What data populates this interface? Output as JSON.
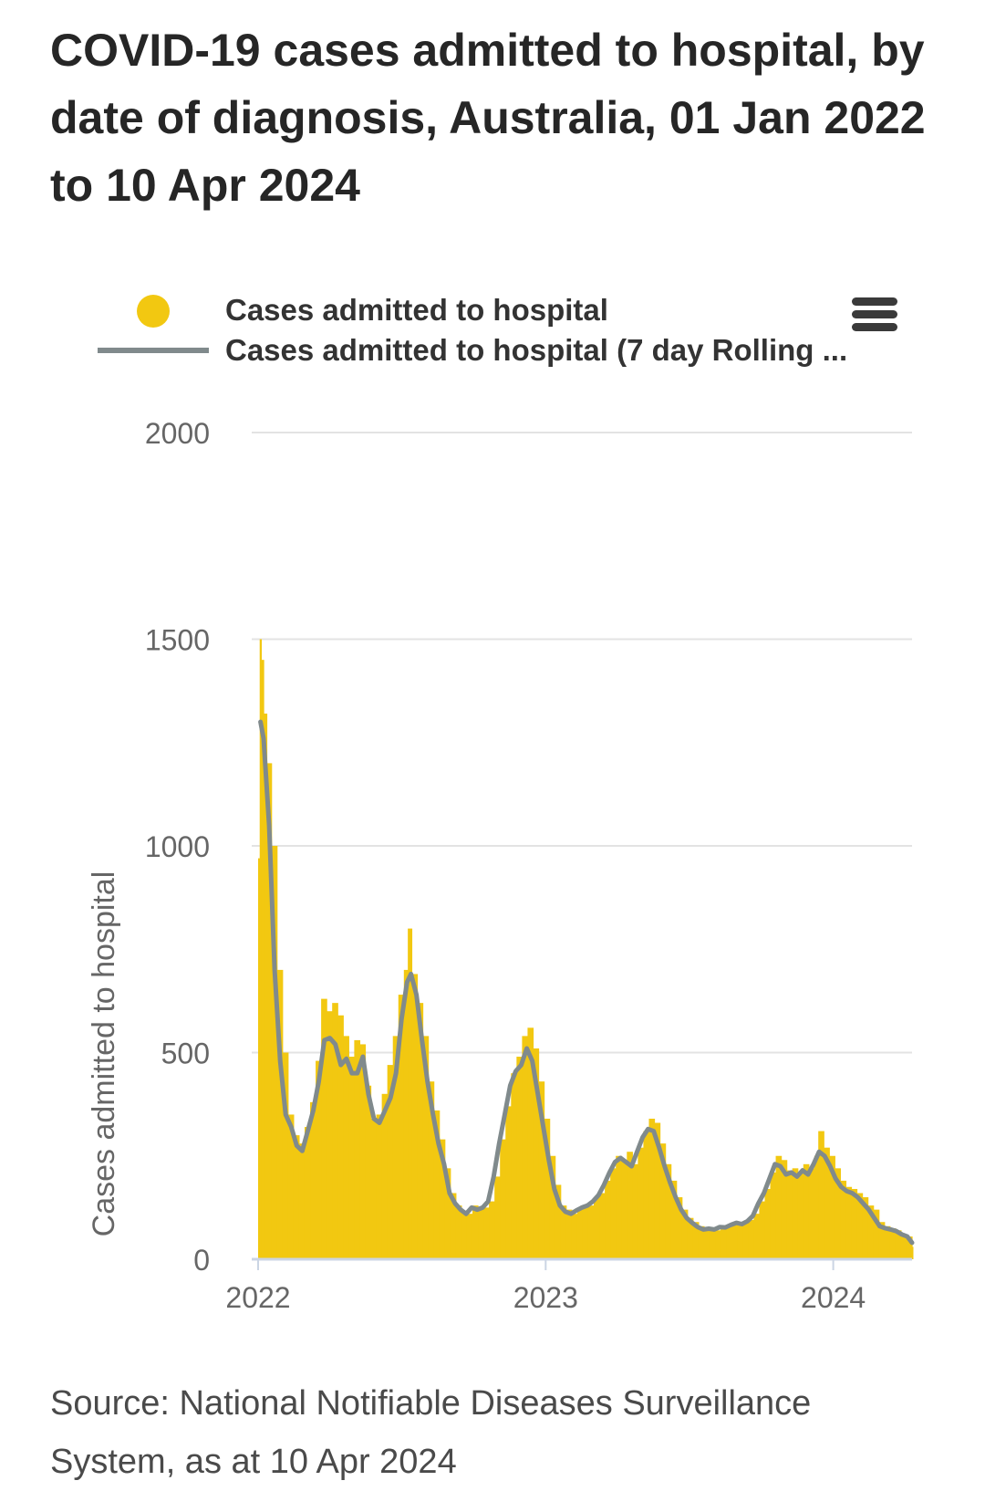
{
  "title": "COVID-19 cases admitted to hospital, by date of diagnosis, Australia, 01 Jan 2022 to 10 Apr 2024",
  "source": "Source: National Notifiable Diseases Surveillance System, as at 10 Apr 2024",
  "menu": {
    "icon": "hamburger-menu-icon"
  },
  "colors": {
    "bars": "#f2c811",
    "line": "#808a8c",
    "grid": "#e3e3e3",
    "axis": "#cbd5e4",
    "text": "#666666"
  },
  "legend": {
    "items": [
      {
        "label": "Cases admitted to hospital",
        "symbol": "circle"
      },
      {
        "label": "Cases admitted to hospital (7 day Rolling ...",
        "symbol": "line"
      }
    ]
  },
  "chart_data": {
    "type": "bar",
    "title": "COVID-19 cases admitted to hospital, by date of diagnosis, Australia, 01 Jan 2022 to 10 Apr 2024",
    "ylabel": "Cases admitted to hospital",
    "xlabel": "",
    "ylim": [
      0,
      2000
    ],
    "yticks": [
      "0",
      "500",
      "1000",
      "1500",
      "2000"
    ],
    "xlim": [
      "2022-01-01",
      "2024-04-10"
    ],
    "xticks": [
      {
        "date": "2022-01-01",
        "label": "2022"
      },
      {
        "date": "2023-01-01",
        "label": "2023"
      },
      {
        "date": "2024-01-01",
        "label": "2024"
      }
    ],
    "grid": true,
    "legend_position": "top",
    "series": [
      {
        "name": "Cases admitted to hospital",
        "type": "bar",
        "points": [
          [
            "2022-01-01",
            970
          ],
          [
            "2022-01-03",
            1500
          ],
          [
            "2022-01-05",
            1450
          ],
          [
            "2022-01-08",
            1320
          ],
          [
            "2022-01-12",
            1200
          ],
          [
            "2022-01-18",
            1000
          ],
          [
            "2022-01-25",
            700
          ],
          [
            "2022-02-01",
            500
          ],
          [
            "2022-02-08",
            350
          ],
          [
            "2022-02-15",
            300
          ],
          [
            "2022-02-22",
            280
          ],
          [
            "2022-03-01",
            320
          ],
          [
            "2022-03-08",
            380
          ],
          [
            "2022-03-15",
            480
          ],
          [
            "2022-03-22",
            630
          ],
          [
            "2022-03-29",
            600
          ],
          [
            "2022-04-05",
            620
          ],
          [
            "2022-04-12",
            590
          ],
          [
            "2022-04-19",
            540
          ],
          [
            "2022-04-26",
            490
          ],
          [
            "2022-05-03",
            530
          ],
          [
            "2022-05-10",
            520
          ],
          [
            "2022-05-17",
            420
          ],
          [
            "2022-05-24",
            340
          ],
          [
            "2022-05-31",
            350
          ],
          [
            "2022-06-07",
            400
          ],
          [
            "2022-06-14",
            470
          ],
          [
            "2022-06-21",
            540
          ],
          [
            "2022-06-28",
            640
          ],
          [
            "2022-07-05",
            700
          ],
          [
            "2022-07-10",
            800
          ],
          [
            "2022-07-15",
            690
          ],
          [
            "2022-07-22",
            620
          ],
          [
            "2022-07-29",
            540
          ],
          [
            "2022-08-05",
            430
          ],
          [
            "2022-08-12",
            360
          ],
          [
            "2022-08-19",
            290
          ],
          [
            "2022-08-26",
            220
          ],
          [
            "2022-09-02",
            160
          ],
          [
            "2022-09-09",
            130
          ],
          [
            "2022-09-16",
            115
          ],
          [
            "2022-09-23",
            110
          ],
          [
            "2022-09-30",
            130
          ],
          [
            "2022-10-07",
            120
          ],
          [
            "2022-10-14",
            125
          ],
          [
            "2022-10-21",
            140
          ],
          [
            "2022-10-28",
            200
          ],
          [
            "2022-11-04",
            290
          ],
          [
            "2022-11-11",
            370
          ],
          [
            "2022-11-18",
            450
          ],
          [
            "2022-11-25",
            490
          ],
          [
            "2022-12-02",
            540
          ],
          [
            "2022-12-09",
            560
          ],
          [
            "2022-12-16",
            510
          ],
          [
            "2022-12-23",
            430
          ],
          [
            "2022-12-30",
            340
          ],
          [
            "2023-01-06",
            250
          ],
          [
            "2023-01-13",
            180
          ],
          [
            "2023-01-20",
            130
          ],
          [
            "2023-01-27",
            120
          ],
          [
            "2023-02-03",
            110
          ],
          [
            "2023-02-10",
            120
          ],
          [
            "2023-02-17",
            130
          ],
          [
            "2023-02-24",
            130
          ],
          [
            "2023-03-03",
            150
          ],
          [
            "2023-03-10",
            160
          ],
          [
            "2023-03-17",
            190
          ],
          [
            "2023-03-24",
            220
          ],
          [
            "2023-03-31",
            250
          ],
          [
            "2023-04-07",
            240
          ],
          [
            "2023-04-14",
            260
          ],
          [
            "2023-04-21",
            230
          ],
          [
            "2023-04-28",
            270
          ],
          [
            "2023-05-05",
            310
          ],
          [
            "2023-05-12",
            340
          ],
          [
            "2023-05-19",
            330
          ],
          [
            "2023-05-26",
            280
          ],
          [
            "2023-06-02",
            230
          ],
          [
            "2023-06-09",
            190
          ],
          [
            "2023-06-16",
            150
          ],
          [
            "2023-06-23",
            120
          ],
          [
            "2023-06-30",
            100
          ],
          [
            "2023-07-07",
            90
          ],
          [
            "2023-07-14",
            80
          ],
          [
            "2023-07-21",
            72
          ],
          [
            "2023-07-28",
            75
          ],
          [
            "2023-08-04",
            70
          ],
          [
            "2023-08-11",
            80
          ],
          [
            "2023-08-18",
            78
          ],
          [
            "2023-08-25",
            85
          ],
          [
            "2023-09-01",
            90
          ],
          [
            "2023-09-08",
            88
          ],
          [
            "2023-09-15",
            95
          ],
          [
            "2023-09-22",
            110
          ],
          [
            "2023-09-29",
            140
          ],
          [
            "2023-10-06",
            170
          ],
          [
            "2023-10-13",
            210
          ],
          [
            "2023-10-20",
            250
          ],
          [
            "2023-10-27",
            240
          ],
          [
            "2023-11-03",
            215
          ],
          [
            "2023-11-10",
            220
          ],
          [
            "2023-11-17",
            210
          ],
          [
            "2023-11-24",
            230
          ],
          [
            "2023-12-01",
            220
          ],
          [
            "2023-12-08",
            250
          ],
          [
            "2023-12-13",
            310
          ],
          [
            "2023-12-20",
            270
          ],
          [
            "2023-12-27",
            250
          ],
          [
            "2024-01-03",
            220
          ],
          [
            "2024-01-10",
            190
          ],
          [
            "2024-01-17",
            175
          ],
          [
            "2024-01-24",
            170
          ],
          [
            "2024-01-31",
            160
          ],
          [
            "2024-02-07",
            150
          ],
          [
            "2024-02-14",
            130
          ],
          [
            "2024-02-21",
            120
          ],
          [
            "2024-02-28",
            90
          ],
          [
            "2024-03-06",
            80
          ],
          [
            "2024-03-13",
            75
          ],
          [
            "2024-03-20",
            70
          ],
          [
            "2024-03-27",
            60
          ],
          [
            "2024-04-03",
            55
          ],
          [
            "2024-04-10",
            30
          ]
        ]
      },
      {
        "name": "Cases admitted to hospital (7 day Rolling ...",
        "type": "line",
        "points": [
          [
            "2022-01-04",
            1300
          ],
          [
            "2022-01-08",
            1260
          ],
          [
            "2022-01-15",
            1050
          ],
          [
            "2022-01-22",
            700
          ],
          [
            "2022-01-29",
            480
          ],
          [
            "2022-02-05",
            350
          ],
          [
            "2022-02-12",
            320
          ],
          [
            "2022-02-19",
            275
          ],
          [
            "2022-02-26",
            262
          ],
          [
            "2022-03-05",
            310
          ],
          [
            "2022-03-12",
            360
          ],
          [
            "2022-03-19",
            430
          ],
          [
            "2022-03-26",
            530
          ],
          [
            "2022-04-02",
            535
          ],
          [
            "2022-04-09",
            520
          ],
          [
            "2022-04-16",
            470
          ],
          [
            "2022-04-23",
            485
          ],
          [
            "2022-04-30",
            450
          ],
          [
            "2022-05-07",
            450
          ],
          [
            "2022-05-14",
            490
          ],
          [
            "2022-05-21",
            400
          ],
          [
            "2022-05-28",
            340
          ],
          [
            "2022-06-04",
            330
          ],
          [
            "2022-06-11",
            360
          ],
          [
            "2022-06-18",
            390
          ],
          [
            "2022-06-25",
            450
          ],
          [
            "2022-07-02",
            580
          ],
          [
            "2022-07-09",
            670
          ],
          [
            "2022-07-14",
            690
          ],
          [
            "2022-07-21",
            640
          ],
          [
            "2022-07-28",
            530
          ],
          [
            "2022-08-04",
            430
          ],
          [
            "2022-08-11",
            350
          ],
          [
            "2022-08-18",
            280
          ],
          [
            "2022-08-25",
            230
          ],
          [
            "2022-09-01",
            160
          ],
          [
            "2022-09-08",
            135
          ],
          [
            "2022-09-15",
            120
          ],
          [
            "2022-09-22",
            110
          ],
          [
            "2022-09-29",
            125
          ],
          [
            "2022-10-06",
            120
          ],
          [
            "2022-10-13",
            125
          ],
          [
            "2022-10-20",
            140
          ],
          [
            "2022-10-27",
            200
          ],
          [
            "2022-11-03",
            280
          ],
          [
            "2022-11-10",
            350
          ],
          [
            "2022-11-17",
            420
          ],
          [
            "2022-11-24",
            455
          ],
          [
            "2022-12-01",
            470
          ],
          [
            "2022-12-08",
            510
          ],
          [
            "2022-12-15",
            480
          ],
          [
            "2022-12-22",
            400
          ],
          [
            "2022-12-29",
            320
          ],
          [
            "2023-01-05",
            240
          ],
          [
            "2023-01-12",
            170
          ],
          [
            "2023-01-19",
            130
          ],
          [
            "2023-01-26",
            115
          ],
          [
            "2023-02-02",
            110
          ],
          [
            "2023-02-09",
            118
          ],
          [
            "2023-02-16",
            125
          ],
          [
            "2023-02-23",
            130
          ],
          [
            "2023-03-02",
            140
          ],
          [
            "2023-03-09",
            155
          ],
          [
            "2023-03-16",
            180
          ],
          [
            "2023-03-23",
            210
          ],
          [
            "2023-03-30",
            235
          ],
          [
            "2023-04-06",
            245
          ],
          [
            "2023-04-13",
            235
          ],
          [
            "2023-04-20",
            225
          ],
          [
            "2023-04-27",
            260
          ],
          [
            "2023-05-04",
            295
          ],
          [
            "2023-05-11",
            315
          ],
          [
            "2023-05-18",
            310
          ],
          [
            "2023-05-25",
            270
          ],
          [
            "2023-06-01",
            225
          ],
          [
            "2023-06-08",
            185
          ],
          [
            "2023-06-15",
            150
          ],
          [
            "2023-06-22",
            120
          ],
          [
            "2023-06-29",
            100
          ],
          [
            "2023-07-06",
            88
          ],
          [
            "2023-07-13",
            78
          ],
          [
            "2023-07-20",
            72
          ],
          [
            "2023-07-27",
            74
          ],
          [
            "2023-08-03",
            72
          ],
          [
            "2023-08-10",
            78
          ],
          [
            "2023-08-17",
            77
          ],
          [
            "2023-08-24",
            83
          ],
          [
            "2023-08-31",
            88
          ],
          [
            "2023-09-07",
            85
          ],
          [
            "2023-09-14",
            92
          ],
          [
            "2023-09-21",
            105
          ],
          [
            "2023-09-28",
            135
          ],
          [
            "2023-10-05",
            160
          ],
          [
            "2023-10-12",
            195
          ],
          [
            "2023-10-19",
            230
          ],
          [
            "2023-10-26",
            225
          ],
          [
            "2023-11-02",
            205
          ],
          [
            "2023-11-09",
            210
          ],
          [
            "2023-11-16",
            200
          ],
          [
            "2023-11-23",
            215
          ],
          [
            "2023-11-30",
            205
          ],
          [
            "2023-12-07",
            230
          ],
          [
            "2023-12-14",
            260
          ],
          [
            "2023-12-21",
            250
          ],
          [
            "2023-12-28",
            225
          ],
          [
            "2024-01-04",
            195
          ],
          [
            "2024-01-11",
            175
          ],
          [
            "2024-01-18",
            165
          ],
          [
            "2024-01-25",
            160
          ],
          [
            "2024-02-01",
            150
          ],
          [
            "2024-02-08",
            135
          ],
          [
            "2024-02-15",
            120
          ],
          [
            "2024-02-22",
            100
          ],
          [
            "2024-02-29",
            80
          ],
          [
            "2024-03-07",
            75
          ],
          [
            "2024-03-14",
            72
          ],
          [
            "2024-03-21",
            68
          ],
          [
            "2024-03-28",
            60
          ],
          [
            "2024-04-04",
            55
          ],
          [
            "2024-04-10",
            40
          ]
        ]
      }
    ]
  }
}
